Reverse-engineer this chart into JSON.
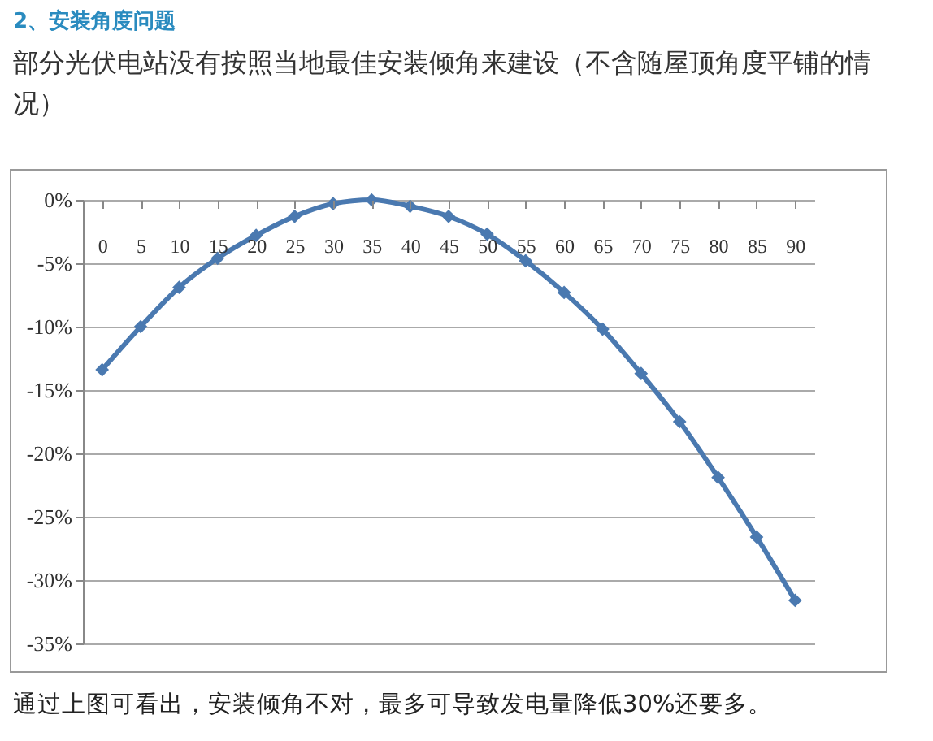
{
  "chart_data": {
    "type": "line",
    "title": "2、安装角度问题",
    "subtitle": "部分光伏电站没有按照当地最佳安装倾角来建设（不含随屋顶角度平铺的情况）",
    "annotations": [
      "通过上图可看出，安装倾角不对，最多可导致发电量降低30%还要多。"
    ],
    "categories": [
      "0",
      "5",
      "10",
      "15",
      "20",
      "25",
      "30",
      "35",
      "40",
      "45",
      "50",
      "55",
      "60",
      "65",
      "70",
      "75",
      "80",
      "85",
      "90"
    ],
    "series": [
      {
        "color": "#4a79b0",
        "values": [
          -13.4,
          -10.0,
          -6.9,
          -4.6,
          -2.8,
          -1.3,
          -0.3,
          0,
          -0.5,
          -1.3,
          -2.7,
          -4.8,
          -7.3,
          -10.2,
          -13.7,
          -17.5,
          -21.9,
          -26.6,
          -31.6
        ]
      }
    ],
    "ylim": [
      -35,
      0
    ],
    "yticks": [
      {
        "value": 0,
        "label": "0%"
      },
      {
        "value": -5,
        "label": "-5%"
      },
      {
        "value": -10,
        "label": "-10%"
      },
      {
        "value": -15,
        "label": "-15%"
      },
      {
        "value": -20,
        "label": "-20%"
      },
      {
        "value": -25,
        "label": "-25%"
      },
      {
        "value": -30,
        "label": "-30%"
      },
      {
        "value": -35,
        "label": "-35%"
      }
    ],
    "grid": "y",
    "marker": "diamond",
    "line_style": "solid"
  }
}
